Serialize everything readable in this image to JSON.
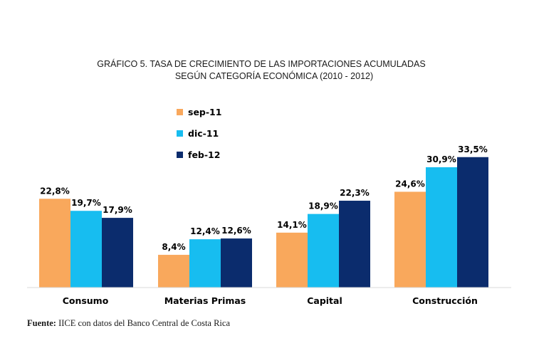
{
  "chart_data": {
    "type": "bar",
    "title": "GRÁFICO 5. TASA DE CRECIMIENTO DE LAS IMPORTACIONES ACUMULADAS",
    "subtitle": "SEGÚN CATEGORÍA ECONÓMICA (2010 - 2012)",
    "categories": [
      "Consumo",
      "Materias Primas",
      "Capital",
      "Construcción"
    ],
    "series": [
      {
        "name": "sep-11",
        "color": "#F9A85C",
        "values": [
          22.8,
          8.4,
          14.1,
          24.6
        ],
        "labels": [
          "22,8%",
          "8,4%",
          "14,1%",
          "24,6%"
        ]
      },
      {
        "name": "dic-11",
        "color": "#17BDF0",
        "values": [
          19.7,
          12.4,
          18.9,
          30.9
        ],
        "labels": [
          "19,7%",
          "12,4%",
          "18,9%",
          "30,9%"
        ]
      },
      {
        "name": "feb-12",
        "color": "#0B2C6D",
        "values": [
          17.9,
          12.6,
          22.3,
          33.5
        ],
        "labels": [
          "17,9%",
          "12,6%",
          "22,3%",
          "33,5%"
        ]
      }
    ],
    "ylim": [
      0,
      40
    ],
    "grid": false,
    "legend": "top-center"
  },
  "source": {
    "label": "Fuente:",
    "text": " IICE con datos del Banco Central de Costa Rica"
  }
}
